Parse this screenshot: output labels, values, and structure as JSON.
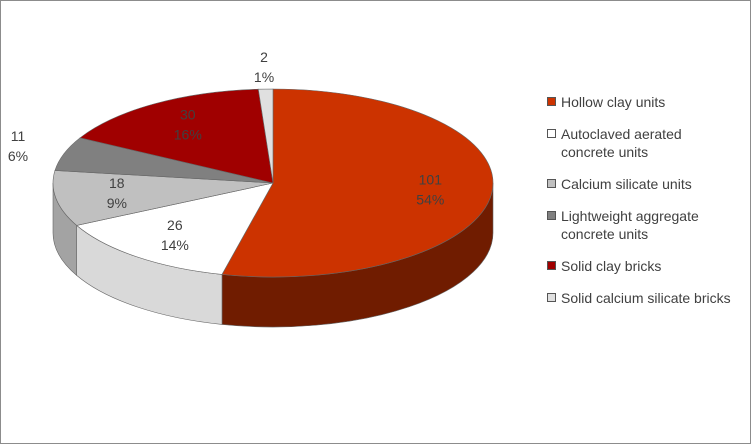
{
  "chart_data": {
    "type": "pie3d",
    "categories": [
      "Hollow clay units",
      "Autoclaved aerated concrete units",
      "Calcium silicate units",
      "Lightweight aggregate concrete units",
      "Solid clay bricks",
      "Solid calcium silicate bricks"
    ],
    "values": [
      101,
      26,
      18,
      11,
      30,
      2
    ],
    "percent_labels": [
      "54%",
      "14%",
      "9%",
      "6%",
      "16%",
      "1%"
    ],
    "colors": [
      "#cc3300",
      "#ffffff",
      "#c0c0c0",
      "#808080",
      "#a00000",
      "#e0e0e0"
    ],
    "legend": "right"
  }
}
